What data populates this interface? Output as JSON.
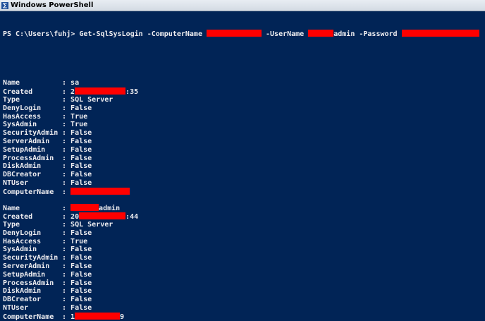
{
  "window": {
    "title": "Windows PowerShell",
    "icon": "powershell-icon"
  },
  "command": {
    "prompt": "PS C:\\Users\\fuhj> ",
    "cmdlet": "Get-SqlSysLogin",
    "p1": " -ComputerName ",
    "p2": " -UserName ",
    "user_suffix": "admin",
    "p3": " -Password "
  },
  "records": [
    {
      "lines": [
        [
          "Name",
          "sa"
        ],
        [
          "Created",
          "2",
          ":35"
        ],
        [
          "Type",
          "SQL Server"
        ],
        [
          "DenyLogin",
          "False"
        ],
        [
          "HasAccess",
          "True"
        ],
        [
          "SysAdmin",
          "True"
        ],
        [
          "SecurityAdmin",
          "False"
        ],
        [
          "ServerAdmin",
          "False"
        ],
        [
          "SetupAdmin",
          "False"
        ],
        [
          "ProcessAdmin",
          "False"
        ],
        [
          "DiskAdmin",
          "False"
        ],
        [
          "DBCreator",
          "False"
        ],
        [
          "NTUser",
          "False"
        ],
        [
          "ComputerName",
          ""
        ]
      ]
    },
    {
      "lines": [
        [
          "Name",
          "",
          "admin"
        ],
        [
          "Created",
          "20",
          ":44"
        ],
        [
          "Type",
          "SQL Server"
        ],
        [
          "DenyLogin",
          "False"
        ],
        [
          "HasAccess",
          "True"
        ],
        [
          "SysAdmin",
          "False"
        ],
        [
          "SecurityAdmin",
          "False"
        ],
        [
          "ServerAdmin",
          "False"
        ],
        [
          "SetupAdmin",
          "False"
        ],
        [
          "ProcessAdmin",
          "False"
        ],
        [
          "DiskAdmin",
          "False"
        ],
        [
          "DBCreator",
          "False"
        ],
        [
          "NTUser",
          "False"
        ],
        [
          "ComputerName",
          "1",
          "9"
        ]
      ]
    }
  ],
  "colors": {
    "background": "#012456",
    "text": "#eeedf0",
    "redaction": "#ff0000"
  }
}
